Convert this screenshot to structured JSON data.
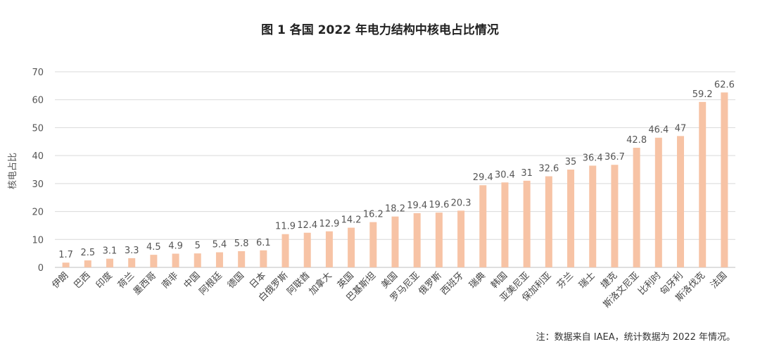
{
  "chart_data": {
    "type": "bar",
    "title": "图 1 各国 2022 年电力结构中核电占比情况",
    "ylabel": "核电占比",
    "xlabel": "",
    "ylim": [
      0,
      70
    ],
    "yticks": [
      0,
      10,
      20,
      30,
      40,
      50,
      60,
      70
    ],
    "grid": true,
    "bar_color": "#f7c3a5",
    "categories": [
      "伊朗",
      "巴西",
      "印度",
      "荷兰",
      "墨西哥",
      "南非",
      "中国",
      "阿根廷",
      "德国",
      "日本",
      "白俄罗斯",
      "阿联酋",
      "加拿大",
      "英国",
      "巴基斯坦",
      "美国",
      "罗马尼亚",
      "俄罗斯",
      "西班牙",
      "瑞典",
      "韩国",
      "亚美尼亚",
      "保加利亚",
      "芬兰",
      "瑞士",
      "捷克",
      "斯洛文尼亚",
      "比利时",
      "匈牙利",
      "斯洛伐克",
      "法国"
    ],
    "values": [
      1.7,
      2.5,
      3.1,
      3.3,
      4.5,
      4.9,
      5,
      5.4,
      5.8,
      6.1,
      11.9,
      12.4,
      12.9,
      14.2,
      16.2,
      18.2,
      19.4,
      19.6,
      20.3,
      29.4,
      30.4,
      31,
      32.6,
      35,
      36.4,
      36.7,
      42.8,
      46.4,
      47,
      59.2,
      62.6
    ]
  },
  "note": "注：数据来自 IAEA，统计数据为 2022 年情况。"
}
